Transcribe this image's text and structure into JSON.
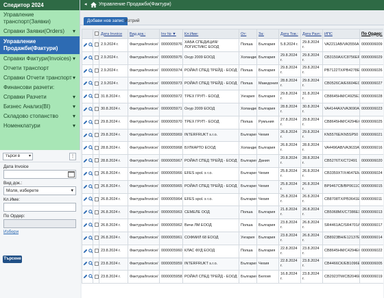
{
  "app": {
    "title": "Спедитор 2024"
  },
  "sidebar": {
    "items": [
      {
        "label": "Управление транспорт(Заявки)",
        "expandable": false
      },
      {
        "label": "Справки Заявки(Orders)",
        "expandable": true
      },
      {
        "label": "Управление Продажби(Фактури)",
        "expandable": false,
        "active": true
      },
      {
        "label": "Справки Фактури(Invoices)",
        "expandable": true
      },
      {
        "label": "Отчети транспорт",
        "expandable": false
      },
      {
        "label": "Справки Отчети транспорт",
        "expandable": true
      },
      {
        "label": "Финансови разчети:",
        "expandable": false
      },
      {
        "label": "Справки Разчети",
        "expandable": true
      },
      {
        "label": "Бизнес Анализ(BI)",
        "expandable": true
      },
      {
        "label": "Складово стопанство",
        "expandable": true
      },
      {
        "label": "Номенклатури",
        "expandable": true
      }
    ]
  },
  "filters": {
    "search_select": "търси в",
    "date_label": "Дата Invoice",
    "doc_type_label": "Вид док.:",
    "doc_type_value": "Моля, изберете",
    "client_label": "Кл.Име:",
    "order_label": "По Ордер:",
    "clear_label": "Избери",
    "search_button": "Търсене"
  },
  "topbar": {
    "breadcrumb": "Управление Продажби(Фактури)"
  },
  "tabs": [
    {
      "label": "Добави нов запис"
    },
    {
      "label": "Изтрий"
    }
  ],
  "table": {
    "columns": [
      "Дата Invoice",
      "Вид док.:",
      "Inv №",
      "Кл.Име:",
      "От:",
      "За:",
      "Дата Тов.:",
      "Дата Разт.:",
      "ИПС",
      "По Ордер:"
    ],
    "rows": [
      [
        "2.9.2024 г.",
        "Фактура/Invoice/",
        "0000005976",
        "ХАБА СПЕДИЦИЯ/ЛОГИСТИКС ЕООД",
        "Полша",
        "България",
        "5.8.2024 г.",
        "29.8.2024 г.",
        "VA2211AB/VA3556AB",
        "0000006009"
      ],
      [
        "2.9.2024 г.",
        "Фактура/Invoice/",
        "0000005975",
        "Онур 2009 ЕООД",
        "Холандия",
        "България",
        "29.8.2024 г.",
        "29.8.2024 г.",
        "CB3150AX/C8756EP",
        "0000006029"
      ],
      [
        "2.9.2024 г.",
        "Фактура/Invoice/",
        "0000005974",
        "РОЙАЛ СПЕД ТРЕЙД - ЕООД",
        "Полша",
        "България",
        "29.8.2024 г.",
        "29.8.2024 г.",
        "PB7122TX/PB4278ЕС",
        "0000006026"
      ],
      [
        "2.9.2024 г.",
        "Фактура/Invoice/",
        "0000005973",
        "РОЙАЛ СПЕД ТРЕЙД - ЕООД",
        "Полша",
        "Македония",
        "28.8.2024 г.",
        "29.8.2024 г.",
        "CB0526CA/E6604ЕС",
        "0000006027"
      ],
      [
        "31.8.2024 г.",
        "Фактура/Invoice/",
        "0000005972",
        "ТРЕХ ГРУП - ЕООД",
        "Унгария",
        "България",
        "29.8.2024 г.",
        "31.8.2024 г.",
        "CB8645HM/C4925EX",
        "0000006028"
      ],
      [
        "30.8.2024 г.",
        "Фактура/Invoice/",
        "0000005971",
        "Онур 2009 ЕООД",
        "Холандия",
        "България",
        "28.8.2024 г.",
        "30.8.2024 г.",
        "VA4144AX/VA3690AB",
        "0000006023"
      ],
      [
        "29.8.2024 г.",
        "Фактура/Invoice/",
        "0000005970",
        "ТРЕХ ГРУП - ЕООД",
        "Полша",
        "Румъния",
        "27.8.2024 г.",
        "29.8.2024 г.",
        "CB8645HM/C4294EC",
        "0000006025"
      ],
      [
        "29.8.2024 г.",
        "Фактура/Invoice/",
        "0000005969",
        "INTERFRUKT s.r.o.",
        "България",
        "Чехия",
        "26.8.2024 г.",
        "29.8.2024 г.",
        "KN5576E/KN5SP50",
        "0000006021"
      ],
      [
        "28.8.2024 г.",
        "Фактура/Invoice/",
        "0000005968",
        "БУЛКАРТО ЕООД",
        "Холандия",
        "България",
        "26.8.2024 г.",
        "28.8.2024 г.",
        "VA4496AB/VA3633AV",
        "0000006016"
      ],
      [
        "28.8.2024 г.",
        "Фактура/Invoice/",
        "0000005967",
        "РОЙАЛ СПЕД ТРЕЙД - ЕООД",
        "България",
        "Дания",
        "20.8.2024 г.",
        "28.8.2024 г.",
        "CB5276TX/CT2491",
        "0000006020"
      ],
      [
        "26.8.2024 г.",
        "Фактура/Invoice/",
        "0000005966",
        "EFES spol. s r.o.",
        "България",
        "Чехия",
        "25.8.2024 г.",
        "26.8.2024 г.",
        "CB3359XT/X4647EM",
        "0000006024"
      ],
      [
        "26.8.2024 г.",
        "Фактура/Invoice/",
        "0000005965",
        "РОЙАЛ СПЕД ТРЕЙД - ЕООД",
        "България",
        "Чехия",
        "25.8.2024 г.",
        "26.8.2024 г.",
        "BP9467CB/BP0611CB",
        "0000006015"
      ],
      [
        "26.8.2024 г.",
        "Фактура/Invoice/",
        "0000005964",
        "EFES spol. s r.o.",
        "България",
        "Чехия",
        "25.8.2024 г.",
        "26.8.2024 г.",
        "CB8708TX/PB3641EC",
        "0000006011"
      ],
      [
        "26.8.2024 г.",
        "Фактура/Invoice/",
        "0000005963",
        "СЕМЕЛЕ ООД",
        "Полша",
        "България",
        "21.8.2024 г.",
        "26.8.2024 г.",
        "CB5068MX/C7386EX",
        "0000006013"
      ],
      [
        "26.8.2024 г.",
        "Фактура/Invoice/",
        "0000005962",
        "Вичи ЛМ ЕООД",
        "Полша",
        "България",
        "23.8.2024 г.",
        "26.8.2024 г.",
        "SR4461AC/SR4701AC",
        "0000006017"
      ],
      [
        "26.8.2024 г.",
        "Фактура/Invoice/",
        "0000005961",
        "СОФМИЛ 68 ЕООД",
        "Унгария",
        "България",
        "23.8.2024 г.",
        "26.8.2024 г.",
        "CB8923BH/E12137EA",
        "0000006014"
      ],
      [
        "23.8.2024 г.",
        "Фактура/Invoice/",
        "0000005960",
        "КЛАС ФУД ЕООД",
        "Полша",
        "България",
        "22.8.2024 г.",
        "23.8.2024 г.",
        "CB8645HM/C4294EC",
        "0000006022"
      ],
      [
        "23.8.2024 г.",
        "Фактура/Invoice/",
        "0000005959",
        "INTERFRUKT s.r.o.",
        "България",
        "Чехия",
        "22.8.2024 г.",
        "23.8.2024 г.",
        "CB4466CK/EB1096EB",
        "0000006005"
      ],
      [
        "23.8.2024 г.",
        "Фактура/Invoice/",
        "0000005958",
        "РОЙАЛ СПЕД ТРЕЙД - ЕООД",
        "България",
        "Белгия",
        "16.8.2024 г.",
        "23.8.2024 г.",
        "CB2923TM/CB2046EB",
        "0000006019"
      ]
    ]
  },
  "colors": {
    "brand_green": "#2e6a45",
    "menu_green": "#a8e6b6",
    "accent_blue": "#2d6bb3"
  },
  "icons": {
    "edit": "pencil-icon",
    "view": "magnifier-icon",
    "home": "home-icon"
  }
}
